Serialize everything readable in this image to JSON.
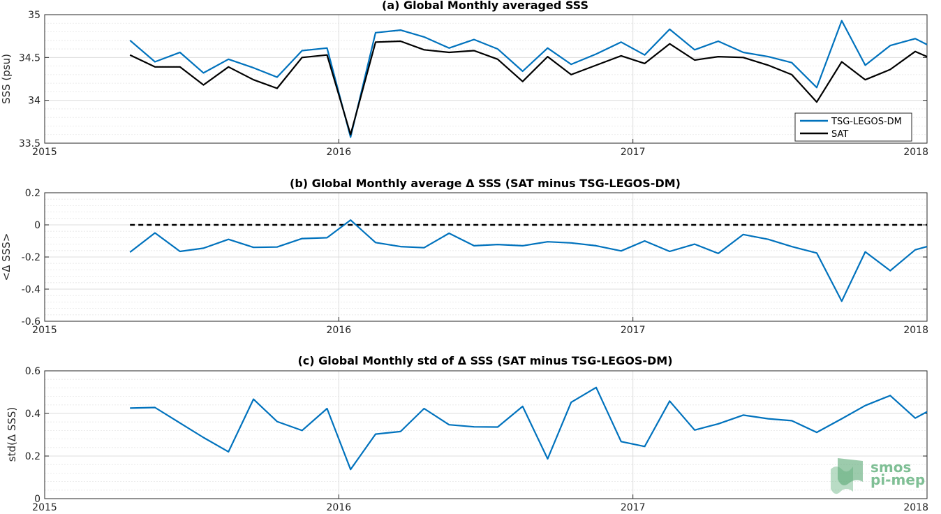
{
  "figure": {
    "logo_line1": "smos",
    "logo_line2": "pi-mep"
  },
  "chart_data": [
    {
      "type": "line",
      "title": "(a) Global Monthly averaged SSS",
      "ylabel": "SSS (psu)",
      "xlim": [
        2015,
        2018
      ],
      "ylim": [
        33.5,
        35
      ],
      "xticks": [
        2015,
        2016,
        2017,
        2018
      ],
      "xticklabels": [
        "2015",
        "2016",
        "2017",
        "2018"
      ],
      "yticks": [
        33.5,
        34,
        34.5,
        35
      ],
      "yticklabels": [
        "33.5",
        "34",
        "34.5",
        "35"
      ],
      "grid": true,
      "legend_position": "bottom-right",
      "x": [
        2015.29,
        2015.375,
        2015.46,
        2015.54,
        2015.625,
        2015.71,
        2015.79,
        2015.875,
        2015.96,
        2016.04,
        2016.125,
        2016.21,
        2016.29,
        2016.375,
        2016.46,
        2016.54,
        2016.625,
        2016.71,
        2016.79,
        2016.875,
        2016.96,
        2017.04,
        2017.125,
        2017.21,
        2017.29,
        2017.375,
        2017.46,
        2017.54,
        2017.625,
        2017.71,
        2017.79,
        2017.875,
        2017.96,
        2018.0
      ],
      "series": [
        {
          "name": "TSG-LEGOS-DM",
          "color": "#0072BD",
          "values": [
            34.7,
            34.45,
            34.56,
            34.32,
            34.48,
            34.38,
            34.27,
            34.58,
            34.61,
            33.57,
            34.79,
            34.82,
            34.74,
            34.61,
            34.71,
            34.6,
            34.34,
            34.61,
            34.42,
            34.54,
            34.68,
            34.53,
            34.83,
            34.59,
            34.69,
            34.56,
            34.51,
            34.44,
            34.15,
            34.93,
            34.41,
            34.64,
            34.72,
            34.65
          ]
        },
        {
          "name": "SAT",
          "color": "#000000",
          "values": [
            34.53,
            34.39,
            34.39,
            34.18,
            34.39,
            34.24,
            34.14,
            34.5,
            34.53,
            33.6,
            34.68,
            34.69,
            34.59,
            34.56,
            34.58,
            34.48,
            34.22,
            34.51,
            34.3,
            34.41,
            34.52,
            34.43,
            34.66,
            34.47,
            34.51,
            34.5,
            34.41,
            34.3,
            33.98,
            34.45,
            34.24,
            34.36,
            34.57,
            34.51
          ]
        }
      ]
    },
    {
      "type": "line",
      "title": "(b) Global Monthly average Δ SSS (SAT minus TSG-LEGOS-DM)",
      "ylabel": "<Δ SSS>",
      "xlim": [
        2015,
        2018
      ],
      "ylim": [
        -0.6,
        0.2
      ],
      "xticks": [
        2015,
        2016,
        2017,
        2018
      ],
      "xticklabels": [
        "2015",
        "2016",
        "2017",
        "2018"
      ],
      "yticks": [
        -0.6,
        -0.4,
        -0.2,
        0,
        0.2
      ],
      "yticklabels": [
        "-0.6",
        "-0.4",
        "-0.2",
        "0",
        "0.2"
      ],
      "grid": true,
      "reference_line": {
        "y": 0,
        "style": "dashed",
        "color": "#000000",
        "x_from": 2015.29,
        "x_to": 2018.0
      },
      "x": [
        2015.29,
        2015.375,
        2015.46,
        2015.54,
        2015.625,
        2015.71,
        2015.79,
        2015.875,
        2015.96,
        2016.04,
        2016.125,
        2016.21,
        2016.29,
        2016.375,
        2016.46,
        2016.54,
        2016.625,
        2016.71,
        2016.79,
        2016.875,
        2016.96,
        2017.04,
        2017.125,
        2017.21,
        2017.29,
        2017.375,
        2017.46,
        2017.54,
        2017.625,
        2017.71,
        2017.79,
        2017.875,
        2017.96,
        2018.0
      ],
      "series": [
        {
          "color": "#0072BD",
          "values": [
            -0.17,
            -0.05,
            -0.165,
            -0.145,
            -0.09,
            -0.14,
            -0.138,
            -0.085,
            -0.08,
            0.03,
            -0.11,
            -0.135,
            -0.142,
            -0.052,
            -0.13,
            -0.122,
            -0.13,
            -0.105,
            -0.112,
            -0.13,
            -0.162,
            -0.1,
            -0.165,
            -0.12,
            -0.178,
            -0.06,
            -0.09,
            -0.135,
            -0.175,
            -0.475,
            -0.168,
            -0.285,
            -0.155,
            -0.135
          ]
        }
      ]
    },
    {
      "type": "line",
      "title": "(c) Global Monthly std of Δ SSS (SAT minus TSG-LEGOS-DM)",
      "ylabel": "std(Δ SSS)",
      "xlim": [
        2015,
        2018
      ],
      "ylim": [
        0,
        0.6
      ],
      "xticks": [
        2015,
        2016,
        2017,
        2018
      ],
      "xticklabels": [
        "2015",
        "2016",
        "2017",
        "2018"
      ],
      "yticks": [
        0,
        0.2,
        0.4,
        0.6
      ],
      "yticklabels": [
        "0",
        "0.2",
        "0.4",
        "0.6"
      ],
      "grid": true,
      "x": [
        2015.29,
        2015.375,
        2015.46,
        2015.54,
        2015.625,
        2015.71,
        2015.79,
        2015.875,
        2015.96,
        2016.04,
        2016.125,
        2016.21,
        2016.29,
        2016.375,
        2016.46,
        2016.54,
        2016.625,
        2016.71,
        2016.79,
        2016.875,
        2016.96,
        2017.04,
        2017.125,
        2017.21,
        2017.29,
        2017.375,
        2017.46,
        2017.54,
        2017.625,
        2017.71,
        2017.79,
        2017.875,
        2017.96,
        2018.0
      ],
      "series": [
        {
          "color": "#0072BD",
          "values": [
            0.425,
            0.428,
            0.355,
            0.287,
            0.22,
            0.467,
            0.362,
            0.32,
            0.423,
            0.137,
            0.303,
            0.315,
            0.423,
            0.347,
            0.337,
            0.336,
            0.433,
            0.187,
            0.452,
            0.522,
            0.268,
            0.245,
            0.458,
            0.322,
            0.351,
            0.392,
            0.375,
            0.366,
            0.311,
            0.375,
            0.437,
            0.484,
            0.378,
            0.408
          ]
        }
      ]
    }
  ]
}
